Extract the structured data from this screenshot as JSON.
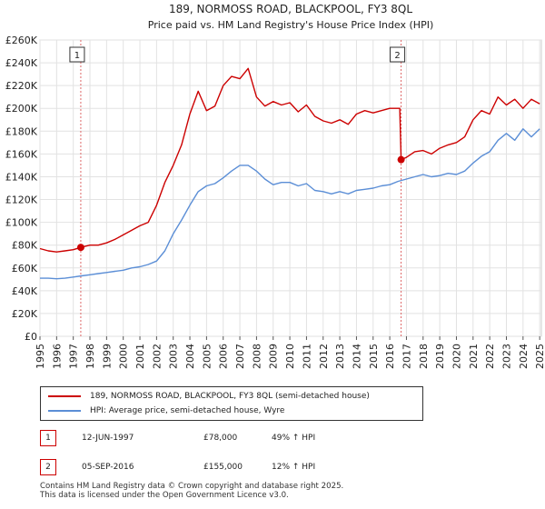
{
  "chart_data": {
    "type": "line",
    "title": "189, NORMOSS ROAD, BLACKPOOL, FY3 8QL",
    "subtitle": "Price paid vs. HM Land Registry's House Price Index (HPI)",
    "xlabel": "",
    "ylabel": "",
    "xlim": [
      1995,
      2025.1
    ],
    "ylim": [
      0,
      260000
    ],
    "y_ticks": [
      0,
      20000,
      40000,
      60000,
      80000,
      100000,
      120000,
      140000,
      160000,
      180000,
      200000,
      220000,
      240000,
      260000
    ],
    "y_tick_labels": [
      "£0",
      "£20K",
      "£40K",
      "£60K",
      "£80K",
      "£100K",
      "£120K",
      "£140K",
      "£160K",
      "£180K",
      "£200K",
      "£220K",
      "£240K",
      "£260K"
    ],
    "x_ticks": [
      1995,
      1996,
      1997,
      1998,
      1999,
      2000,
      2001,
      2002,
      2003,
      2004,
      2005,
      2006,
      2007,
      2008,
      2009,
      2010,
      2011,
      2012,
      2013,
      2014,
      2015,
      2016,
      2017,
      2018,
      2019,
      2020,
      2021,
      2022,
      2023,
      2024,
      2025
    ],
    "x_tick_labels": [
      "1995",
      "1996",
      "1997",
      "1998",
      "1999",
      "2000",
      "2001",
      "2002",
      "2003",
      "2004",
      "2005",
      "2006",
      "2007",
      "2008",
      "2009",
      "2010",
      "2011",
      "2012",
      "2013",
      "2014",
      "2015",
      "2016",
      "2017",
      "2018",
      "2019",
      "2020",
      "2021",
      "2022",
      "2023",
      "2024",
      "2025"
    ],
    "grid": true,
    "series": [
      {
        "name": "189, NORMOSS ROAD, BLACKPOOL, FY3 8QL (semi-detached house)",
        "color": "#cc0000",
        "x": [
          1995.0,
          1995.5,
          1996.0,
          1996.5,
          1997.0,
          1997.45,
          1998.0,
          1998.5,
          1999.0,
          1999.5,
          2000.0,
          2000.5,
          2001.0,
          2001.5,
          2002.0,
          2002.5,
          2003.0,
          2003.5,
          2004.0,
          2004.5,
          2005.0,
          2005.5,
          2006.0,
          2006.5,
          2007.0,
          2007.5,
          2008.0,
          2008.5,
          2009.0,
          2009.5,
          2010.0,
          2010.5,
          2011.0,
          2011.5,
          2012.0,
          2012.5,
          2013.0,
          2013.5,
          2014.0,
          2014.5,
          2015.0,
          2015.5,
          2016.0,
          2016.6,
          2016.68,
          2017.0,
          2017.5,
          2018.0,
          2018.5,
          2019.0,
          2019.5,
          2020.0,
          2020.5,
          2021.0,
          2021.5,
          2022.0,
          2022.5,
          2023.0,
          2023.5,
          2024.0,
          2024.5,
          2025.0
        ],
        "values": [
          77000,
          75000,
          74000,
          75000,
          76000,
          78000,
          80000,
          80000,
          82000,
          85000,
          89000,
          93000,
          97000,
          100000,
          115000,
          135000,
          150000,
          168000,
          195000,
          215000,
          198000,
          202000,
          220000,
          228000,
          226000,
          235000,
          210000,
          202000,
          206000,
          203000,
          205000,
          197000,
          203000,
          193000,
          189000,
          187000,
          190000,
          186000,
          195000,
          198000,
          196000,
          198000,
          200000,
          200000,
          155000,
          157000,
          162000,
          163000,
          160000,
          165000,
          168000,
          170000,
          175000,
          190000,
          198000,
          195000,
          210000,
          203000,
          208000,
          200000,
          208000,
          204000
        ]
      },
      {
        "name": "HPI: Average price, semi-detached house, Wyre",
        "color": "#5b8ed6",
        "x": [
          1995.0,
          1995.5,
          1996.0,
          1996.5,
          1997.0,
          1997.5,
          1998.0,
          1998.5,
          1999.0,
          1999.5,
          2000.0,
          2000.5,
          2001.0,
          2001.5,
          2002.0,
          2002.5,
          2003.0,
          2003.5,
          2004.0,
          2004.5,
          2005.0,
          2005.5,
          2006.0,
          2006.5,
          2007.0,
          2007.5,
          2008.0,
          2008.5,
          2009.0,
          2009.5,
          2010.0,
          2010.5,
          2011.0,
          2011.5,
          2012.0,
          2012.5,
          2013.0,
          2013.5,
          2014.0,
          2014.5,
          2015.0,
          2015.5,
          2016.0,
          2016.5,
          2017.0,
          2017.5,
          2018.0,
          2018.5,
          2019.0,
          2019.5,
          2020.0,
          2020.5,
          2021.0,
          2021.5,
          2022.0,
          2022.5,
          2023.0,
          2023.5,
          2024.0,
          2024.5,
          2025.0
        ],
        "values": [
          51000,
          51000,
          50500,
          51000,
          52000,
          53000,
          54000,
          55000,
          56000,
          57000,
          58000,
          60000,
          61000,
          63000,
          66000,
          75000,
          90000,
          102000,
          115000,
          127000,
          132000,
          134000,
          139000,
          145000,
          150000,
          150000,
          145000,
          138000,
          133000,
          135000,
          135000,
          132000,
          134000,
          128000,
          127000,
          125000,
          127000,
          125000,
          128000,
          129000,
          130000,
          132000,
          133000,
          136000,
          138000,
          140000,
          142000,
          140000,
          141000,
          143000,
          142000,
          145000,
          152000,
          158000,
          162000,
          172000,
          178000,
          172000,
          182000,
          175000,
          182000
        ]
      }
    ],
    "markers": [
      {
        "id": "1",
        "x": 1997.45,
        "y": 78000
      },
      {
        "id": "2",
        "x": 2016.68,
        "y": 155000
      }
    ]
  },
  "legend": {
    "items": [
      {
        "label": "189, NORMOSS ROAD, BLACKPOOL, FY3 8QL (semi-detached house)",
        "color": "#cc0000"
      },
      {
        "label": "HPI: Average price, semi-detached house, Wyre",
        "color": "#5b8ed6"
      }
    ]
  },
  "transactions": [
    {
      "id": "1",
      "date": "12-JUN-1997",
      "price": "£78,000",
      "hpi": "49% ↑ HPI"
    },
    {
      "id": "2",
      "date": "05-SEP-2016",
      "price": "£155,000",
      "hpi": "12% ↑ HPI"
    }
  ],
  "footer": {
    "line1": "Contains HM Land Registry data © Crown copyright and database right 2025.",
    "line2": "This data is licensed under the Open Government Licence v3.0."
  }
}
